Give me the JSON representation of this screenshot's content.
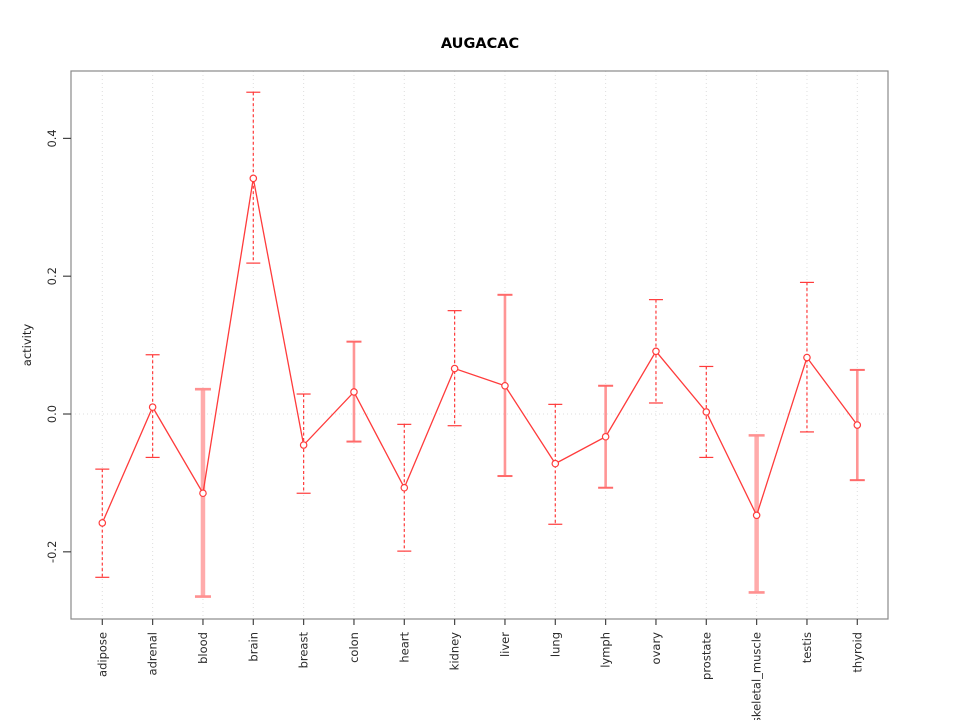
{
  "chart_data": {
    "type": "line",
    "title": "AUGACAC",
    "ylabel": "activity",
    "xlabel": "",
    "legend": null,
    "grid": "dotted vertical line per category; dotted horizontal line at y=0",
    "x_tick_rotation": 90,
    "y_tick_rotation": 90,
    "ylim": [
      -0.2975,
      0.4978
    ],
    "ytick_values": [
      -0.2,
      0.0,
      0.2,
      0.4
    ],
    "ytick_labels": [
      "-0.2",
      "0.0",
      "0.2",
      "0.4"
    ],
    "categories": [
      "adipose",
      "adrenal",
      "blood",
      "brain",
      "breast",
      "colon",
      "heart",
      "kidney",
      "liver",
      "lung",
      "lymph",
      "ovary",
      "prostate",
      "skeletal_muscle",
      "testis",
      "thyroid"
    ],
    "series": [
      {
        "name": "activity",
        "marker": "open-circle",
        "values": [
          -0.158,
          0.01,
          -0.115,
          0.342,
          -0.045,
          0.032,
          -0.107,
          0.066,
          0.041,
          -0.072,
          -0.033,
          0.091,
          0.003,
          -0.147,
          0.082,
          -0.016
        ],
        "error_upper": [
          -0.08,
          0.086,
          0.036,
          0.467,
          0.029,
          0.105,
          -0.015,
          0.15,
          0.173,
          0.014,
          0.041,
          0.166,
          0.069,
          -0.031,
          0.191,
          0.064
        ],
        "error_lower": [
          -0.237,
          -0.063,
          -0.265,
          0.219,
          -0.115,
          -0.04,
          -0.199,
          -0.017,
          -0.09,
          -0.16,
          -0.107,
          0.016,
          -0.063,
          -0.259,
          -0.026,
          -0.096
        ],
        "bar_styles": [
          "thin-dashed",
          "thin-dashed",
          "thick",
          "thin-dashed",
          "thin-dashed",
          "medium",
          "thin-dashed",
          "thin-dashed",
          "medium",
          "thin-dashed",
          "medium",
          "thin-dashed",
          "thin-dashed",
          "thick",
          "thin-dashed",
          "medium"
        ]
      }
    ],
    "colors": {
      "line": "#ff3b3b",
      "bar_thin": "#ff3b3b",
      "bar_medium": "#ff9595",
      "bar_medium_cap": "#ff6a6a",
      "bar_thick": "#ffabab",
      "bar_thick_cap": "#ff9090",
      "marker_fill": "#ffffff",
      "grid": "#dedede",
      "axis_box": "#8a8a8a",
      "tick": "#444444",
      "text": "#2b2b2b"
    }
  }
}
